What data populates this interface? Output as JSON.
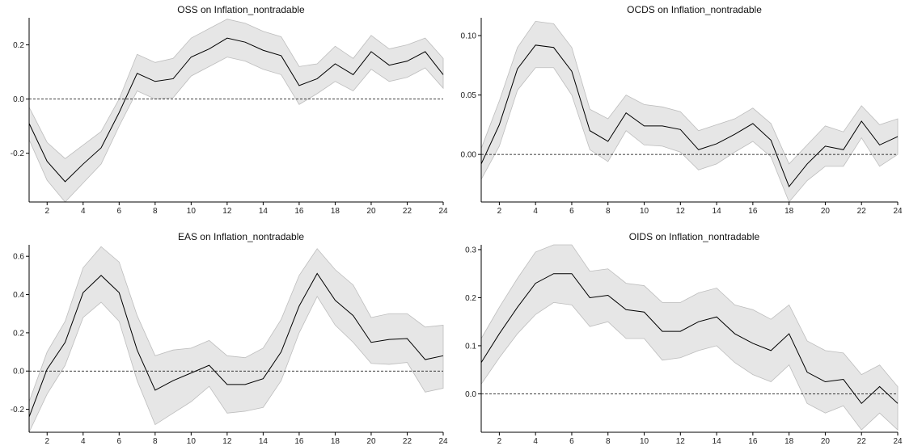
{
  "chart_data": [
    {
      "type": "line",
      "title": "OSS on Inflation_nontradable",
      "x": [
        1,
        2,
        3,
        4,
        5,
        6,
        7,
        8,
        9,
        10,
        11,
        12,
        13,
        14,
        15,
        16,
        17,
        18,
        19,
        20,
        21,
        22,
        23,
        24
      ],
      "xticks": [
        2,
        4,
        6,
        8,
        10,
        12,
        14,
        16,
        18,
        20,
        22,
        24
      ],
      "yticks": [
        -0.2,
        0.0,
        0.2
      ],
      "ytick_labels": [
        "-0.2",
        "0.0",
        "0.2"
      ],
      "xlim": [
        1,
        24
      ],
      "ylim": [
        -0.38,
        0.3
      ],
      "zero_line": true,
      "grid": false,
      "series": [
        {
          "role": "response",
          "values": [
            -0.09,
            -0.23,
            -0.305,
            -0.24,
            -0.18,
            -0.05,
            0.095,
            0.065,
            0.075,
            0.155,
            0.185,
            0.225,
            0.21,
            0.18,
            0.16,
            0.05,
            0.075,
            0.13,
            0.09,
            0.175,
            0.125,
            0.14,
            0.175,
            0.09
          ]
        },
        {
          "role": "upper",
          "values": [
            -0.03,
            -0.16,
            -0.22,
            -0.17,
            -0.12,
            0.0,
            0.165,
            0.135,
            0.15,
            0.225,
            0.26,
            0.295,
            0.28,
            0.25,
            0.23,
            0.12,
            0.13,
            0.195,
            0.15,
            0.235,
            0.185,
            0.2,
            0.225,
            0.15
          ]
        },
        {
          "role": "lower",
          "values": [
            -0.15,
            -0.3,
            -0.38,
            -0.31,
            -0.24,
            -0.1,
            0.03,
            0.0,
            0.005,
            0.085,
            0.12,
            0.155,
            0.14,
            0.11,
            0.09,
            -0.02,
            0.02,
            0.065,
            0.03,
            0.11,
            0.065,
            0.08,
            0.115,
            0.04
          ]
        }
      ]
    },
    {
      "type": "line",
      "title": "OCDS on Inflation_nontradable",
      "x": [
        1,
        2,
        3,
        4,
        5,
        6,
        7,
        8,
        9,
        10,
        11,
        12,
        13,
        14,
        15,
        16,
        17,
        18,
        19,
        20,
        21,
        22,
        23,
        24
      ],
      "xticks": [
        2,
        4,
        6,
        8,
        10,
        12,
        14,
        16,
        18,
        20,
        22,
        24
      ],
      "yticks": [
        0.0,
        0.05,
        0.1
      ],
      "ytick_labels": [
        "0.00",
        "0.05",
        "0.10"
      ],
      "xlim": [
        1,
        24
      ],
      "ylim": [
        -0.04,
        0.115
      ],
      "zero_line": true,
      "grid": false,
      "series": [
        {
          "role": "response",
          "values": [
            -0.008,
            0.025,
            0.072,
            0.092,
            0.09,
            0.07,
            0.02,
            0.011,
            0.035,
            0.024,
            0.024,
            0.021,
            0.004,
            0.009,
            0.017,
            0.026,
            0.012,
            -0.027,
            -0.008,
            0.007,
            0.004,
            0.028,
            0.008,
            0.015
          ]
        },
        {
          "role": "upper",
          "values": [
            0.005,
            0.045,
            0.09,
            0.112,
            0.11,
            0.09,
            0.038,
            0.03,
            0.05,
            0.042,
            0.04,
            0.036,
            0.02,
            0.025,
            0.03,
            0.039,
            0.026,
            -0.008,
            0.008,
            0.024,
            0.019,
            0.041,
            0.025,
            0.03
          ]
        },
        {
          "role": "lower",
          "values": [
            -0.021,
            0.007,
            0.054,
            0.073,
            0.073,
            0.05,
            0.004,
            -0.006,
            0.02,
            0.008,
            0.007,
            0.002,
            -0.013,
            -0.008,
            0.002,
            0.011,
            -0.002,
            -0.04,
            -0.022,
            -0.01,
            -0.01,
            0.014,
            -0.01,
            0.0
          ]
        }
      ]
    },
    {
      "type": "line",
      "title": "EAS on Inflation_nontradable",
      "x": [
        1,
        2,
        3,
        4,
        5,
        6,
        7,
        8,
        9,
        10,
        11,
        12,
        13,
        14,
        15,
        16,
        17,
        18,
        19,
        20,
        21,
        22,
        23,
        24
      ],
      "xticks": [
        2,
        4,
        6,
        8,
        10,
        12,
        14,
        16,
        18,
        20,
        22,
        24
      ],
      "yticks": [
        -0.2,
        0.0,
        0.2,
        0.4,
        0.6
      ],
      "ytick_labels": [
        "-0.2",
        "0.0",
        "0.2",
        "0.4",
        "0.6"
      ],
      "xlim": [
        1,
        24
      ],
      "ylim": [
        -0.32,
        0.66
      ],
      "zero_line": true,
      "grid": false,
      "series": [
        {
          "role": "response",
          "values": [
            -0.24,
            0.01,
            0.15,
            0.41,
            0.5,
            0.41,
            0.11,
            -0.1,
            -0.05,
            -0.01,
            0.03,
            -0.07,
            -0.07,
            -0.04,
            0.1,
            0.34,
            0.51,
            0.37,
            0.29,
            0.15,
            0.165,
            0.17,
            0.06,
            0.08
          ]
        },
        {
          "role": "upper",
          "values": [
            -0.16,
            0.1,
            0.26,
            0.54,
            0.65,
            0.57,
            0.29,
            0.08,
            0.11,
            0.12,
            0.16,
            0.08,
            0.07,
            0.12,
            0.27,
            0.5,
            0.64,
            0.53,
            0.45,
            0.28,
            0.3,
            0.3,
            0.23,
            0.24
          ]
        },
        {
          "role": "lower",
          "values": [
            -0.32,
            -0.12,
            0.03,
            0.28,
            0.36,
            0.26,
            -0.05,
            -0.28,
            -0.22,
            -0.16,
            -0.08,
            -0.22,
            -0.21,
            -0.19,
            -0.05,
            0.2,
            0.39,
            0.24,
            0.15,
            0.04,
            0.035,
            0.045,
            -0.11,
            -0.09
          ]
        }
      ]
    },
    {
      "type": "line",
      "title": "OIDS on Inflation_nontradable",
      "x": [
        1,
        2,
        3,
        4,
        5,
        6,
        7,
        8,
        9,
        10,
        11,
        12,
        13,
        14,
        15,
        16,
        17,
        18,
        19,
        20,
        21,
        22,
        23,
        24
      ],
      "xticks": [
        2,
        4,
        6,
        8,
        10,
        12,
        14,
        16,
        18,
        20,
        22,
        24
      ],
      "yticks": [
        0.0,
        0.1,
        0.2,
        0.3
      ],
      "ytick_labels": [
        "0.0",
        "0.1",
        "0.2",
        "0.3"
      ],
      "xlim": [
        1,
        24
      ],
      "ylim": [
        -0.08,
        0.31
      ],
      "zero_line": true,
      "grid": false,
      "series": [
        {
          "role": "response",
          "values": [
            0.065,
            0.125,
            0.18,
            0.23,
            0.25,
            0.25,
            0.2,
            0.205,
            0.175,
            0.17,
            0.13,
            0.13,
            0.15,
            0.16,
            0.125,
            0.105,
            0.09,
            0.125,
            0.045,
            0.025,
            0.03,
            -0.02,
            0.015,
            -0.02
          ]
        },
        {
          "role": "upper",
          "values": [
            0.115,
            0.18,
            0.24,
            0.295,
            0.31,
            0.31,
            0.255,
            0.26,
            0.23,
            0.225,
            0.19,
            0.19,
            0.21,
            0.22,
            0.185,
            0.175,
            0.155,
            0.185,
            0.11,
            0.09,
            0.085,
            0.04,
            0.06,
            0.015
          ]
        },
        {
          "role": "lower",
          "values": [
            0.02,
            0.075,
            0.125,
            0.165,
            0.19,
            0.185,
            0.14,
            0.15,
            0.115,
            0.115,
            0.07,
            0.075,
            0.09,
            0.1,
            0.065,
            0.04,
            0.025,
            0.06,
            -0.02,
            -0.04,
            -0.025,
            -0.075,
            -0.04,
            -0.075
          ]
        }
      ]
    }
  ]
}
